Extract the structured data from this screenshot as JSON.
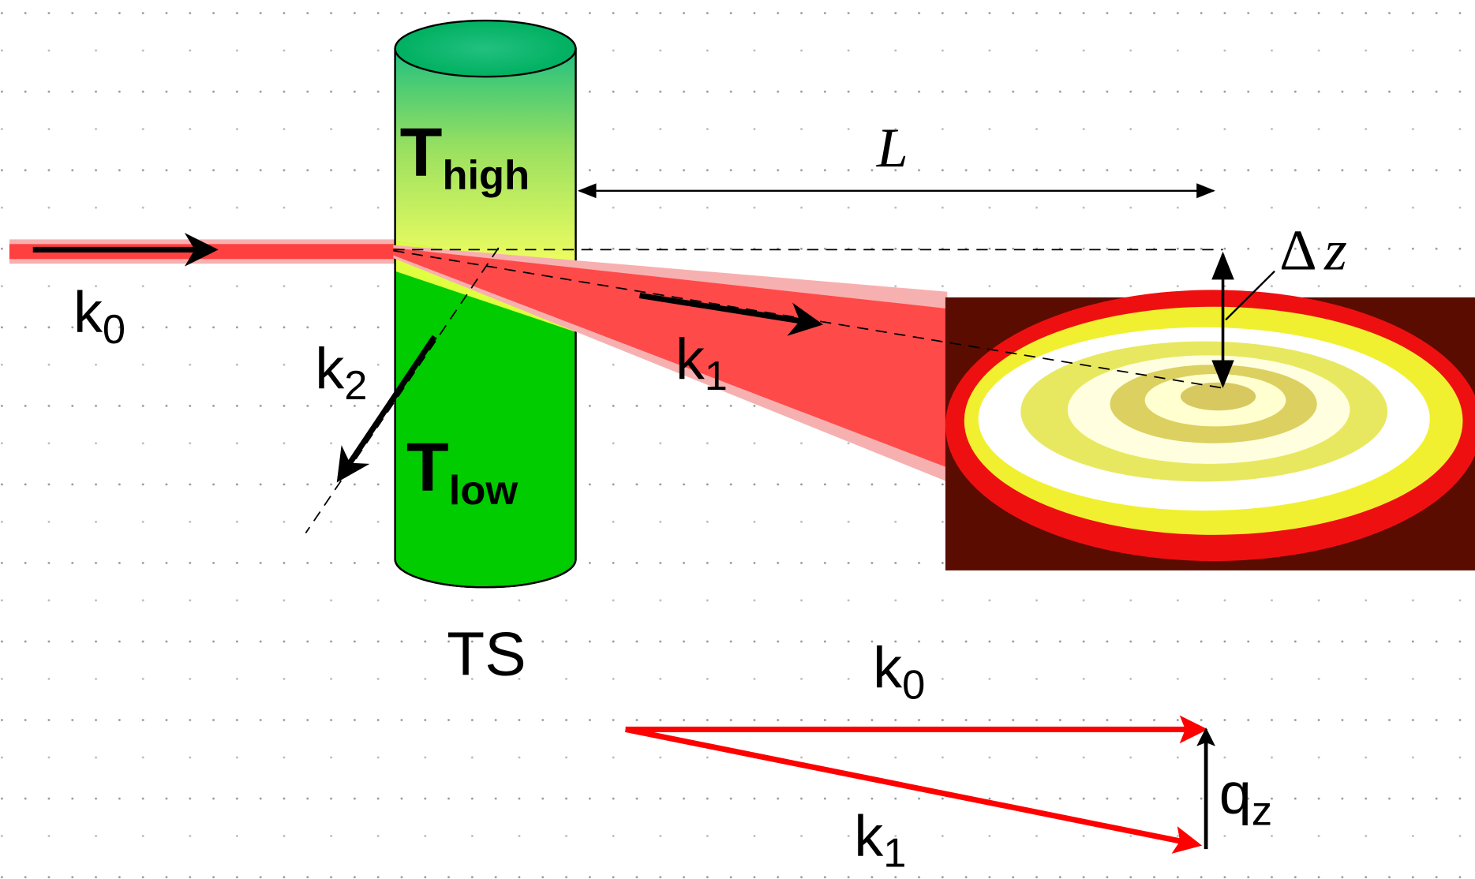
{
  "labels": {
    "beam_in": {
      "base": "k",
      "sub": "0"
    },
    "scattered": {
      "base": "k",
      "sub": "1"
    },
    "transmitted": {
      "base": "k",
      "sub": "2"
    },
    "t_high": {
      "base": "T",
      "sub": "high"
    },
    "t_low": {
      "base": "T",
      "sub": "low"
    },
    "sample": "TS",
    "distance": "L",
    "delta_z": {
      "base": "Δ",
      "var": "z"
    },
    "vector_k0": {
      "base": "k",
      "sub": "0"
    },
    "vector_k1": {
      "base": "k",
      "sub": "1"
    },
    "vector_qz": {
      "base": "q",
      "sub": "z"
    }
  }
}
